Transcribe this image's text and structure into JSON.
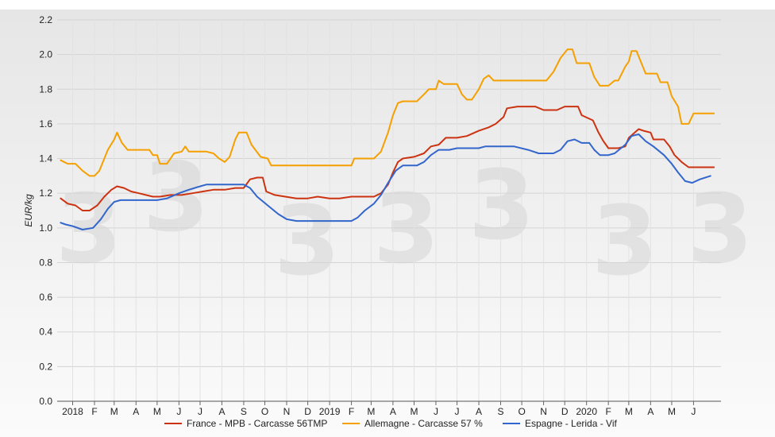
{
  "chart_data": {
    "type": "line",
    "title": "",
    "xlabel": "",
    "ylabel": "EUR/kg",
    "ylim": [
      0.0,
      2.2
    ],
    "yticks": [
      "0.0",
      "0.2",
      "0.4",
      "0.6",
      "0.8",
      "1.0",
      "1.2",
      "1.4",
      "1.6",
      "1.8",
      "2.0",
      "2.2"
    ],
    "xlim": [
      "2017-12-10",
      "2020-07-10"
    ],
    "xticks": [
      {
        "label": "2018",
        "date": "2018-01-01"
      },
      {
        "label": "F",
        "date": "2018-02-01"
      },
      {
        "label": "M",
        "date": "2018-03-01"
      },
      {
        "label": "A",
        "date": "2018-04-01"
      },
      {
        "label": "M",
        "date": "2018-05-01"
      },
      {
        "label": "J",
        "date": "2018-06-01"
      },
      {
        "label": "J",
        "date": "2018-07-01"
      },
      {
        "label": "A",
        "date": "2018-08-01"
      },
      {
        "label": "S",
        "date": "2018-09-01"
      },
      {
        "label": "O",
        "date": "2018-10-01"
      },
      {
        "label": "N",
        "date": "2018-11-01"
      },
      {
        "label": "D",
        "date": "2018-12-01"
      },
      {
        "label": "2019",
        "date": "2019-01-01"
      },
      {
        "label": "F",
        "date": "2019-02-01"
      },
      {
        "label": "M",
        "date": "2019-03-01"
      },
      {
        "label": "A",
        "date": "2019-04-01"
      },
      {
        "label": "M",
        "date": "2019-05-01"
      },
      {
        "label": "J",
        "date": "2019-06-01"
      },
      {
        "label": "J",
        "date": "2019-07-01"
      },
      {
        "label": "A",
        "date": "2019-08-01"
      },
      {
        "label": "S",
        "date": "2019-09-01"
      },
      {
        "label": "O",
        "date": "2019-10-01"
      },
      {
        "label": "N",
        "date": "2019-11-01"
      },
      {
        "label": "D",
        "date": "2019-12-01"
      },
      {
        "label": "2020",
        "date": "2020-01-01"
      },
      {
        "label": "F",
        "date": "2020-02-01"
      },
      {
        "label": "M",
        "date": "2020-03-01"
      },
      {
        "label": "A",
        "date": "2020-04-01"
      },
      {
        "label": "M",
        "date": "2020-05-01"
      },
      {
        "label": "J",
        "date": "2020-06-01"
      }
    ],
    "grid": true,
    "legend_position": "bottom",
    "series": [
      {
        "name": "France - MPB - Carcasse 56TMP",
        "color": "#cc3311",
        "points": [
          [
            "2017-12-15",
            1.17
          ],
          [
            "2017-12-25",
            1.14
          ],
          [
            "2018-01-05",
            1.13
          ],
          [
            "2018-01-15",
            1.1
          ],
          [
            "2018-01-25",
            1.1
          ],
          [
            "2018-02-05",
            1.13
          ],
          [
            "2018-02-15",
            1.18
          ],
          [
            "2018-02-25",
            1.22
          ],
          [
            "2018-03-05",
            1.24
          ],
          [
            "2018-03-15",
            1.23
          ],
          [
            "2018-03-25",
            1.21
          ],
          [
            "2018-04-05",
            1.2
          ],
          [
            "2018-04-15",
            1.19
          ],
          [
            "2018-04-25",
            1.18
          ],
          [
            "2018-05-05",
            1.18
          ],
          [
            "2018-05-20",
            1.19
          ],
          [
            "2018-06-05",
            1.19
          ],
          [
            "2018-06-20",
            1.2
          ],
          [
            "2018-07-05",
            1.21
          ],
          [
            "2018-07-20",
            1.22
          ],
          [
            "2018-08-05",
            1.22
          ],
          [
            "2018-08-20",
            1.23
          ],
          [
            "2018-09-01",
            1.23
          ],
          [
            "2018-09-10",
            1.28
          ],
          [
            "2018-09-20",
            1.29
          ],
          [
            "2018-09-28",
            1.29
          ],
          [
            "2018-10-03",
            1.21
          ],
          [
            "2018-10-15",
            1.19
          ],
          [
            "2018-10-30",
            1.18
          ],
          [
            "2018-11-15",
            1.17
          ],
          [
            "2018-12-01",
            1.17
          ],
          [
            "2018-12-15",
            1.18
          ],
          [
            "2019-01-01",
            1.17
          ],
          [
            "2019-01-15",
            1.17
          ],
          [
            "2019-02-01",
            1.18
          ],
          [
            "2019-02-15",
            1.18
          ],
          [
            "2019-03-05",
            1.18
          ],
          [
            "2019-03-15",
            1.2
          ],
          [
            "2019-03-25",
            1.25
          ],
          [
            "2019-04-01",
            1.32
          ],
          [
            "2019-04-08",
            1.38
          ],
          [
            "2019-04-15",
            1.4
          ],
          [
            "2019-05-01",
            1.41
          ],
          [
            "2019-05-15",
            1.43
          ],
          [
            "2019-05-25",
            1.47
          ],
          [
            "2019-06-05",
            1.48
          ],
          [
            "2019-06-15",
            1.52
          ],
          [
            "2019-07-01",
            1.52
          ],
          [
            "2019-07-15",
            1.53
          ],
          [
            "2019-08-01",
            1.56
          ],
          [
            "2019-08-15",
            1.58
          ],
          [
            "2019-08-25",
            1.6
          ],
          [
            "2019-09-05",
            1.64
          ],
          [
            "2019-09-10",
            1.69
          ],
          [
            "2019-09-25",
            1.7
          ],
          [
            "2019-10-20",
            1.7
          ],
          [
            "2019-11-01",
            1.68
          ],
          [
            "2019-11-20",
            1.68
          ],
          [
            "2019-12-01",
            1.7
          ],
          [
            "2019-12-20",
            1.7
          ],
          [
            "2019-12-25",
            1.65
          ],
          [
            "2020-01-10",
            1.62
          ],
          [
            "2020-01-18",
            1.55
          ],
          [
            "2020-01-25",
            1.5
          ],
          [
            "2020-02-01",
            1.46
          ],
          [
            "2020-02-15",
            1.46
          ],
          [
            "2020-02-25",
            1.47
          ],
          [
            "2020-03-01",
            1.52
          ],
          [
            "2020-03-15",
            1.57
          ],
          [
            "2020-03-22",
            1.56
          ],
          [
            "2020-04-01",
            1.55
          ],
          [
            "2020-04-05",
            1.51
          ],
          [
            "2020-04-20",
            1.51
          ],
          [
            "2020-04-28",
            1.47
          ],
          [
            "2020-05-05",
            1.42
          ],
          [
            "2020-05-15",
            1.38
          ],
          [
            "2020-05-25",
            1.35
          ],
          [
            "2020-06-05",
            1.35
          ],
          [
            "2020-06-30",
            1.35
          ]
        ]
      },
      {
        "name": "Allemagne - Carcasse 57 %",
        "color": "#f5a000",
        "points": [
          [
            "2017-12-15",
            1.39
          ],
          [
            "2017-12-25",
            1.37
          ],
          [
            "2018-01-05",
            1.37
          ],
          [
            "2018-01-15",
            1.33
          ],
          [
            "2018-01-25",
            1.3
          ],
          [
            "2018-02-01",
            1.3
          ],
          [
            "2018-02-08",
            1.33
          ],
          [
            "2018-02-20",
            1.45
          ],
          [
            "2018-03-01",
            1.51
          ],
          [
            "2018-03-05",
            1.55
          ],
          [
            "2018-03-12",
            1.49
          ],
          [
            "2018-03-20",
            1.45
          ],
          [
            "2018-04-10",
            1.45
          ],
          [
            "2018-04-20",
            1.45
          ],
          [
            "2018-04-25",
            1.42
          ],
          [
            "2018-05-01",
            1.42
          ],
          [
            "2018-05-05",
            1.37
          ],
          [
            "2018-05-15",
            1.37
          ],
          [
            "2018-05-25",
            1.43
          ],
          [
            "2018-06-05",
            1.44
          ],
          [
            "2018-06-10",
            1.47
          ],
          [
            "2018-06-15",
            1.44
          ],
          [
            "2018-07-10",
            1.44
          ],
          [
            "2018-07-20",
            1.43
          ],
          [
            "2018-07-28",
            1.4
          ],
          [
            "2018-08-05",
            1.38
          ],
          [
            "2018-08-12",
            1.41
          ],
          [
            "2018-08-20",
            1.51
          ],
          [
            "2018-08-25",
            1.55
          ],
          [
            "2018-09-05",
            1.55
          ],
          [
            "2018-09-12",
            1.48
          ],
          [
            "2018-09-25",
            1.41
          ],
          [
            "2018-10-05",
            1.4
          ],
          [
            "2018-10-10",
            1.36
          ],
          [
            "2018-12-31",
            1.36
          ],
          [
            "2019-02-01",
            1.36
          ],
          [
            "2019-02-05",
            1.4
          ],
          [
            "2019-03-05",
            1.4
          ],
          [
            "2019-03-15",
            1.44
          ],
          [
            "2019-03-25",
            1.55
          ],
          [
            "2019-04-01",
            1.65
          ],
          [
            "2019-04-08",
            1.72
          ],
          [
            "2019-04-15",
            1.73
          ],
          [
            "2019-05-05",
            1.73
          ],
          [
            "2019-05-15",
            1.77
          ],
          [
            "2019-05-22",
            1.8
          ],
          [
            "2019-06-01",
            1.8
          ],
          [
            "2019-06-05",
            1.85
          ],
          [
            "2019-06-12",
            1.83
          ],
          [
            "2019-07-01",
            1.83
          ],
          [
            "2019-07-08",
            1.77
          ],
          [
            "2019-07-15",
            1.74
          ],
          [
            "2019-07-22",
            1.74
          ],
          [
            "2019-08-01",
            1.8
          ],
          [
            "2019-08-08",
            1.86
          ],
          [
            "2019-08-15",
            1.88
          ],
          [
            "2019-08-22",
            1.85
          ],
          [
            "2019-11-05",
            1.85
          ],
          [
            "2019-11-15",
            1.9
          ],
          [
            "2019-11-25",
            1.98
          ],
          [
            "2019-12-05",
            2.03
          ],
          [
            "2019-12-12",
            2.03
          ],
          [
            "2019-12-18",
            1.95
          ],
          [
            "2020-01-05",
            1.95
          ],
          [
            "2020-01-12",
            1.87
          ],
          [
            "2020-01-20",
            1.82
          ],
          [
            "2020-02-01",
            1.82
          ],
          [
            "2020-02-10",
            1.85
          ],
          [
            "2020-02-15",
            1.85
          ],
          [
            "2020-02-25",
            1.93
          ],
          [
            "2020-03-01",
            1.96
          ],
          [
            "2020-03-05",
            2.02
          ],
          [
            "2020-03-12",
            2.02
          ],
          [
            "2020-03-25",
            1.89
          ],
          [
            "2020-04-10",
            1.89
          ],
          [
            "2020-04-15",
            1.84
          ],
          [
            "2020-04-25",
            1.84
          ],
          [
            "2020-05-01",
            1.76
          ],
          [
            "2020-05-10",
            1.7
          ],
          [
            "2020-05-15",
            1.6
          ],
          [
            "2020-05-25",
            1.6
          ],
          [
            "2020-06-01",
            1.66
          ],
          [
            "2020-06-30",
            1.66
          ]
        ]
      },
      {
        "name": "Espagne - Lerida - Vif",
        "color": "#3366cc",
        "points": [
          [
            "2017-12-15",
            1.03
          ],
          [
            "2017-12-22",
            1.02
          ],
          [
            "2018-01-01",
            1.01
          ],
          [
            "2018-01-15",
            0.99
          ],
          [
            "2018-01-30",
            1.0
          ],
          [
            "2018-02-10",
            1.05
          ],
          [
            "2018-02-20",
            1.11
          ],
          [
            "2018-03-01",
            1.15
          ],
          [
            "2018-03-10",
            1.16
          ],
          [
            "2018-05-01",
            1.16
          ],
          [
            "2018-05-15",
            1.17
          ],
          [
            "2018-06-01",
            1.2
          ],
          [
            "2018-06-15",
            1.22
          ],
          [
            "2018-07-01",
            1.24
          ],
          [
            "2018-07-10",
            1.25
          ],
          [
            "2018-09-01",
            1.25
          ],
          [
            "2018-09-10",
            1.23
          ],
          [
            "2018-09-20",
            1.18
          ],
          [
            "2018-10-05",
            1.13
          ],
          [
            "2018-10-20",
            1.08
          ],
          [
            "2018-11-01",
            1.05
          ],
          [
            "2018-11-15",
            1.04
          ],
          [
            "2018-12-31",
            1.04
          ],
          [
            "2019-02-01",
            1.04
          ],
          [
            "2019-02-10",
            1.06
          ],
          [
            "2019-02-20",
            1.1
          ],
          [
            "2019-03-05",
            1.14
          ],
          [
            "2019-03-15",
            1.19
          ],
          [
            "2019-03-25",
            1.26
          ],
          [
            "2019-04-05",
            1.33
          ],
          [
            "2019-04-15",
            1.36
          ],
          [
            "2019-05-05",
            1.36
          ],
          [
            "2019-05-15",
            1.38
          ],
          [
            "2019-05-25",
            1.42
          ],
          [
            "2019-06-05",
            1.45
          ],
          [
            "2019-06-20",
            1.45
          ],
          [
            "2019-07-01",
            1.46
          ],
          [
            "2019-08-01",
            1.46
          ],
          [
            "2019-08-10",
            1.47
          ],
          [
            "2019-09-20",
            1.47
          ],
          [
            "2019-10-10",
            1.45
          ],
          [
            "2019-10-25",
            1.43
          ],
          [
            "2019-11-15",
            1.43
          ],
          [
            "2019-11-25",
            1.45
          ],
          [
            "2019-12-05",
            1.5
          ],
          [
            "2019-12-15",
            1.51
          ],
          [
            "2019-12-25",
            1.49
          ],
          [
            "2020-01-05",
            1.49
          ],
          [
            "2020-01-12",
            1.45
          ],
          [
            "2020-01-20",
            1.42
          ],
          [
            "2020-02-01",
            1.42
          ],
          [
            "2020-02-10",
            1.43
          ],
          [
            "2020-02-25",
            1.48
          ],
          [
            "2020-03-05",
            1.53
          ],
          [
            "2020-03-15",
            1.54
          ],
          [
            "2020-03-25",
            1.5
          ],
          [
            "2020-04-05",
            1.47
          ],
          [
            "2020-04-20",
            1.42
          ],
          [
            "2020-05-01",
            1.37
          ],
          [
            "2020-05-10",
            1.32
          ],
          [
            "2020-05-20",
            1.27
          ],
          [
            "2020-05-30",
            1.26
          ],
          [
            "2020-06-10",
            1.28
          ],
          [
            "2020-06-25",
            1.3
          ]
        ]
      }
    ]
  }
}
